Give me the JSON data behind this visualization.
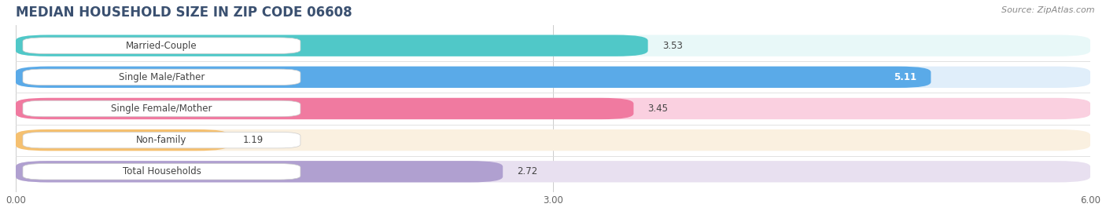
{
  "title": "MEDIAN HOUSEHOLD SIZE IN ZIP CODE 06608",
  "source": "Source: ZipAtlas.com",
  "categories": [
    "Married-Couple",
    "Single Male/Father",
    "Single Female/Mother",
    "Non-family",
    "Total Households"
  ],
  "values": [
    3.53,
    5.11,
    3.45,
    1.19,
    2.72
  ],
  "bar_colors": [
    "#50C8C8",
    "#5AAAE8",
    "#F07AA0",
    "#F5C070",
    "#B0A0D0"
  ],
  "bar_bg_colors": [
    "#E8F8F8",
    "#E0EEFA",
    "#FAD0E0",
    "#FAF0E0",
    "#E8E0F0"
  ],
  "value_labels": [
    "3.53",
    "5.11",
    "3.45",
    "1.19",
    "2.72"
  ],
  "value_inside": [
    false,
    true,
    false,
    false,
    false
  ],
  "xlim": [
    0,
    6.0
  ],
  "xticks": [
    0.0,
    3.0,
    6.0
  ],
  "xtick_labels": [
    "0.00",
    "3.00",
    "6.00"
  ],
  "background_color": "#ffffff",
  "row_bg_color": "#f5f5f5",
  "separator_color": "#dddddd",
  "title_color": "#3a5070",
  "source_color": "#888888",
  "label_color": "#444444",
  "value_color_inside": "#ffffff",
  "value_color_outside": "#444444",
  "label_fontsize": 8.5,
  "value_fontsize": 8.5,
  "title_fontsize": 12,
  "source_fontsize": 8
}
